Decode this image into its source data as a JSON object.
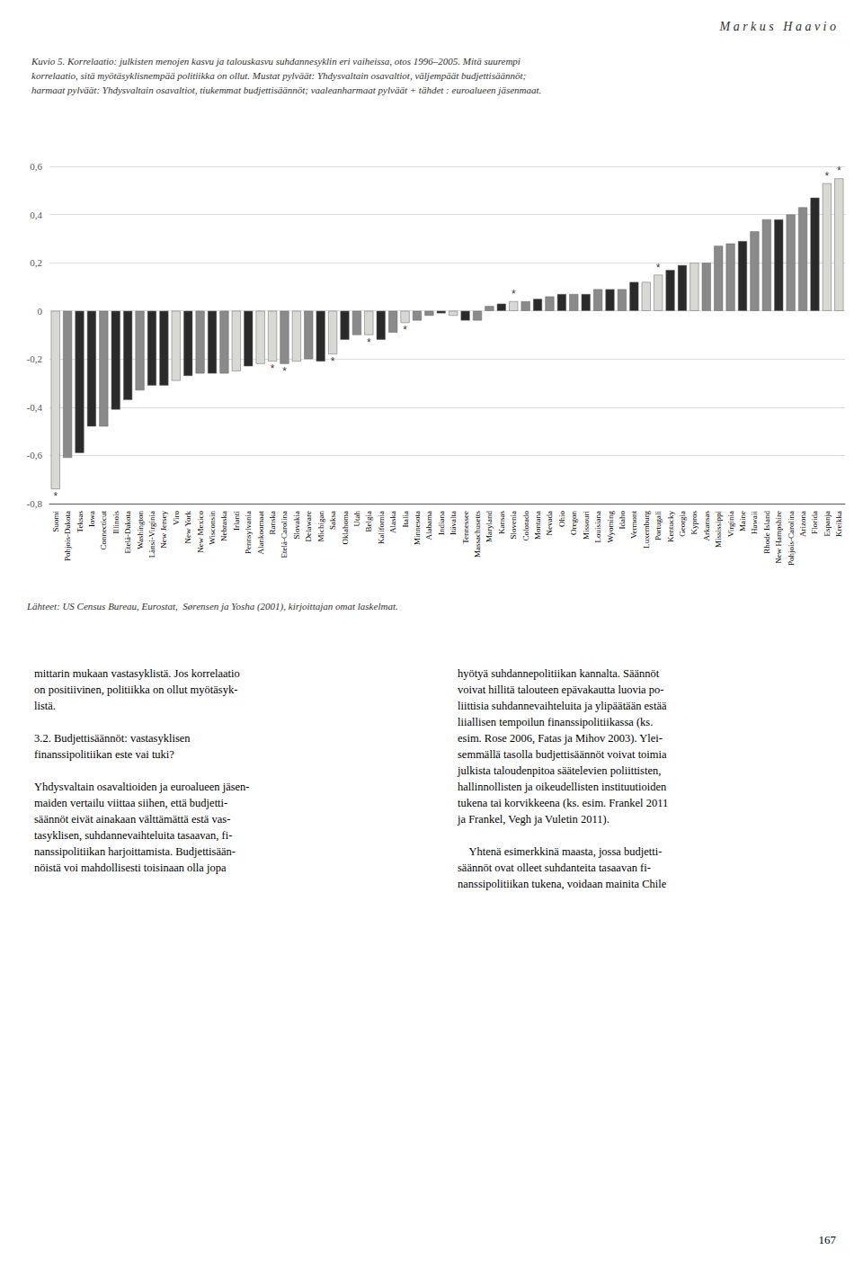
{
  "chart_data": {
    "type": "bar",
    "title": "Kuvio 5. Korrelaatio: julkisten menojen kasvu ja talouskasvu suhdannesyklin eri vaiheissa, otos 1996–2005. Mitä suurempi\nkorrelaatio, sitä myötäsyklisnempää politiikka on ollut. Mustat pylväät: Yhdysvaltain osavaltiot, väljempäät budjettisäännöt;\nharmaat pylväät: Yhdysvaltain osavaltiot, tiukemmat budjettisäännöt; vaaleanharmaat pylväät + tähdet : euroalueen jäsenmaat.",
    "categories": [
      "Suomi",
      "Pohjois-Dakota",
      "Teksas",
      "Iowa",
      "Connecticut",
      "Illinois",
      "Etelä-Dakota",
      "Washington",
      "Länsi-Virginia",
      "New Jersey",
      "Viro",
      "New York",
      "New Mexico",
      "Wisconsin",
      "Nebraska",
      "Irlanti",
      "Pennsylvania",
      "Alankoomaat",
      "Ranska",
      "Etelä-Carolina",
      "Slovakia",
      "Delaware",
      "Michigan",
      "Saksa",
      "Oklahoma",
      "Utah",
      "Belgia",
      "Kalifornia",
      "Alaska",
      "Italia",
      "Minnesota",
      "Alabama",
      "Indiana",
      "Itävalta",
      "Tennessee",
      "Massachusetts",
      "Maryland",
      "Kansas",
      "Slovenia",
      "Colorado",
      "Montana",
      "Nevada",
      "Ohio",
      "Oregon",
      "Missouri",
      "Louisiana",
      "Wyoming",
      "Idaho",
      "Vermont",
      "Luxemburg",
      "Portugali",
      "Kentucky",
      "Georgia",
      "Kypros",
      "Arkansas",
      "Mississippi",
      "Virginia",
      "Maine",
      "Hawaii",
      "Rhode Island",
      "New Hampshire",
      "Pohjois-Carolina",
      "Arizona",
      "Florida",
      "Espanja",
      "Kreikka"
    ],
    "values": [
      -0.74,
      -0.61,
      -0.59,
      -0.48,
      -0.48,
      -0.41,
      -0.37,
      -0.33,
      -0.31,
      -0.31,
      -0.29,
      -0.27,
      -0.26,
      -0.26,
      -0.26,
      -0.25,
      -0.23,
      -0.22,
      -0.21,
      -0.22,
      -0.21,
      -0.2,
      -0.21,
      -0.18,
      -0.12,
      -0.1,
      -0.1,
      -0.12,
      -0.09,
      -0.05,
      -0.04,
      -0.02,
      -0.01,
      -0.02,
      -0.04,
      -0.04,
      0.02,
      0.03,
      0.04,
      0.04,
      0.05,
      0.06,
      0.07,
      0.07,
      0.07,
      0.09,
      0.09,
      0.09,
      0.12,
      0.12,
      0.15,
      0.17,
      0.19,
      0.2,
      0.2,
      0.27,
      0.28,
      0.29,
      0.33,
      0.38,
      0.38,
      0.4,
      0.43,
      0.47,
      0.53,
      0.55
    ],
    "colors": [
      "#d8d8d5",
      "#8a8a8a",
      "#2a2a2a",
      "#2a2a2a",
      "#8a8a8a",
      "#2a2a2a",
      "#2a2a2a",
      "#8a8a8a",
      "#2a2a2a",
      "#2a2a2a",
      "#d8d8d5",
      "#2a2a2a",
      "#8a8a8a",
      "#2a2a2a",
      "#8a8a8a",
      "#d8d8d5",
      "#2a2a2a",
      "#d8d8d5",
      "#d8d8d5",
      "#8a8a8a",
      "#d8d8d5",
      "#8a8a8a",
      "#2a2a2a",
      "#d8d8d5",
      "#2a2a2a",
      "#8a8a8a",
      "#d8d8d5",
      "#2a2a2a",
      "#8a8a8a",
      "#d8d8d5",
      "#8a8a8a",
      "#8a8a8a",
      "#2a2a2a",
      "#d8d8d5",
      "#2a2a2a",
      "#8a8a8a",
      "#8a8a8a",
      "#2a2a2a",
      "#d8d8d5",
      "#8a8a8a",
      "#2a2a2a",
      "#8a8a8a",
      "#2a2a2a",
      "#8a8a8a",
      "#2a2a2a",
      "#8a8a8a",
      "#2a2a2a",
      "#8a8a8a",
      "#2a2a2a",
      "#d8d8d5",
      "#d8d8d5",
      "#2a2a2a",
      "#2a2a2a",
      "#d8d8d5",
      "#8a8a8a",
      "#8a8a8a",
      "#8a8a8a",
      "#2a2a2a",
      "#8a8a8a",
      "#8a8a8a",
      "#2a2a2a",
      "#8a8a8a",
      "#8a8a8a",
      "#2a2a2a",
      "#d8d8d5",
      "#d8d8d5"
    ],
    "stars": [
      "*",
      null,
      null,
      null,
      null,
      null,
      null,
      null,
      null,
      null,
      null,
      null,
      null,
      null,
      null,
      null,
      null,
      null,
      "*",
      "*",
      null,
      null,
      null,
      "*",
      null,
      null,
      "*",
      null,
      null,
      "*",
      null,
      null,
      null,
      null,
      null,
      null,
      null,
      null,
      "*",
      null,
      null,
      null,
      null,
      null,
      null,
      null,
      null,
      null,
      null,
      null,
      "*",
      null,
      null,
      null,
      null,
      null,
      null,
      null,
      null,
      null,
      null,
      null,
      null,
      null,
      "*",
      "*"
    ],
    "ylim": [
      -0.8,
      0.6
    ],
    "yticks": [
      {
        "value": -0.8,
        "label": "-0,8"
      },
      {
        "value": -0.6,
        "label": "-0,6"
      },
      {
        "value": -0.4,
        "label": "-0,4"
      },
      {
        "value": -0.2,
        "label": "-0,2"
      },
      0,
      {
        "value": 0.2,
        "label": "0,2"
      },
      {
        "value": 0.4,
        "label": "0,4"
      },
      {
        "value": 0.6,
        "label": "0,6"
      }
    ],
    "grid": true,
    "annotations": [
      "M a r k u s   H a a v i o",
      "Lähteet: US Census Bureau, Eurostat,  Sørensen ja Yosha (2001), kirjoittajan omat laskelmat.",
      "mittarin mukaan vastasyklistä. Jos korrelaatio\non positiivinen, politiikka on ollut myötäsyk-\nlistä.\n\n3.2. Budjettisäännöt: vastasyklisen\nfinanssipolitiikan este vai tuki?\n\nYhdysvaltain osavaltioiden ja euroalueen jäsen-\nmaiden vertailu viittaa siihen, että budjetti-\nsäännöt eivät ainakaan välttämättä estä vas-\ntasyklisen, suhdannevaihteluita tasaavan, fi-\nnanssipolitiikan harjoittamista. Budjettisään-\nnöistä voi mahdollisesti toisinaan olla jopa",
      "hyötyä suhdannepolitiikan kannalta. Säännöt\nvoivat hillitä talouteen epävakautta luovia po-\nliittisia suhdannevaihteluita ja ylipäätään estää\nliiallisen tempoilun finanssipolitiikassa (ks.\nesim. Rose 2006, Fatas ja Mihov 2003). Ylei-\nsemmällä tasolla budjettisäännöt voivat toimia\njulkista taloudenpitoa säätelevien poliittisten,\nhallinnollisten ja oikeudellisten instituutioiden\ntukena tai korvikkeena (ks. esim. Frankel 2011\nja Frankel, Vegh ja Vuletin 2011).\n\n    Yhtenä esimerkkinä maasta, jossa budjetti-\nsäännöt ovat olleet suhdanteita tasaavan fi-\nnanssipolitiikan tukena, voidaan mainita Chile",
      "167"
    ]
  }
}
